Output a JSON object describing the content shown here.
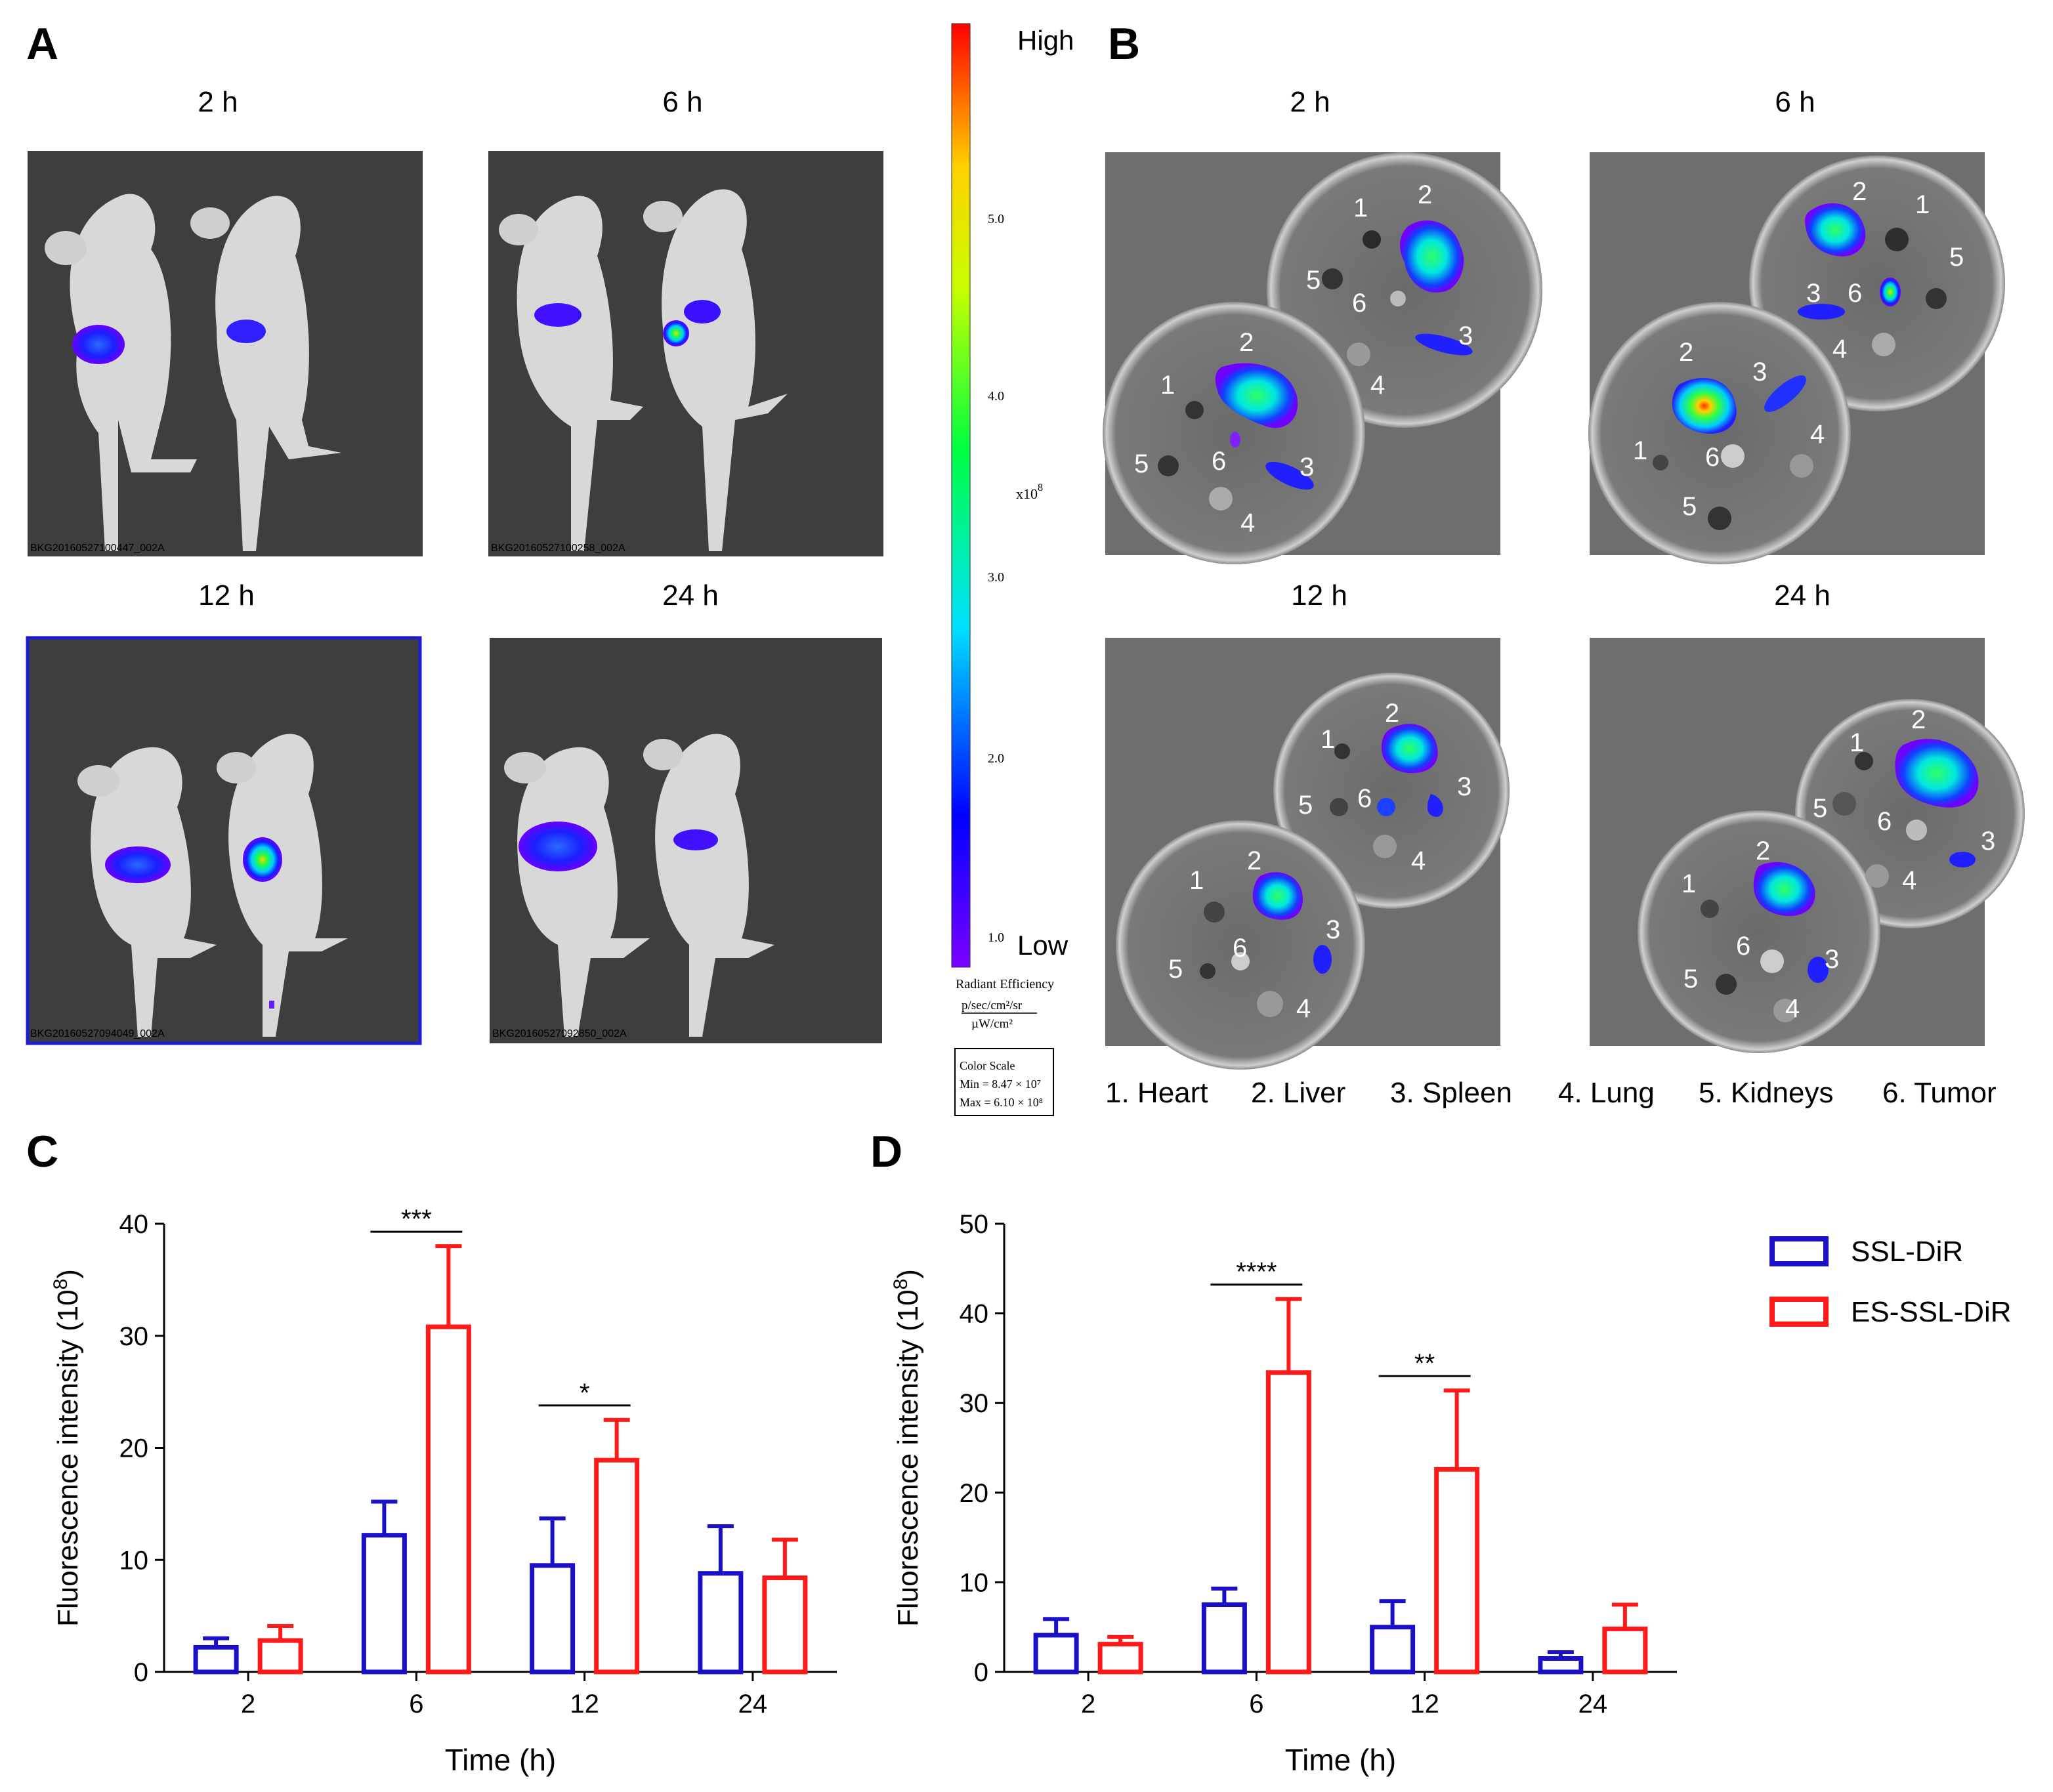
{
  "panel_labels": {
    "A": "A",
    "B": "B",
    "C": "C",
    "D": "D"
  },
  "panel_a": {
    "time_labels": [
      "2 h",
      "6 h",
      "12 h",
      "24 h"
    ],
    "image_ids": [
      "BKG20160527100447_002A",
      "BKG20160527100258_002A",
      "BKG20160527094049_002A",
      "BKG20160527092850_002A"
    ]
  },
  "colorbar": {
    "high": "High",
    "low": "Low",
    "ticks": [
      "5.0",
      "4.0",
      "3.0",
      "2.0",
      "1.0"
    ],
    "exponent_base": "x10",
    "exponent": "8",
    "title": "Radiant Efficiency",
    "unit_numerator": "p/sec/cm²/sr",
    "unit_denominator": "µW/cm²",
    "scale_title": "Color Scale",
    "scale_min": "Min = 8.47 × 10⁷",
    "scale_max": "Max = 6.10 × 10⁸",
    "colors": [
      "#7a00ff",
      "#0000ff",
      "#00e0ff",
      "#00ff40",
      "#c8ff00",
      "#ffd000",
      "#ff0000"
    ]
  },
  "panel_b": {
    "time_labels": [
      "2 h",
      "6 h",
      "12 h",
      "24 h"
    ],
    "organ_numbers": [
      "1",
      "2",
      "3",
      "4",
      "5",
      "6"
    ],
    "legend": [
      "1. Heart",
      "2. Liver",
      "3. Spleen",
      "4. Lung",
      "5. Kidneys",
      "6. Tumor"
    ]
  },
  "legend": {
    "series": [
      {
        "name": "SSL-DiR",
        "color": "#1a10c8"
      },
      {
        "name": "ES-SSL-DiR",
        "color": "#ff1a1a"
      }
    ]
  },
  "chart_data": [
    {
      "id": "C",
      "type": "bar",
      "title": "",
      "xlabel": "Time (h)",
      "ylabel": "Fluorescence intensity (10",
      "ylabel_exp": "8",
      "ylabel_close": ")",
      "categories": [
        "2",
        "6",
        "12",
        "24"
      ],
      "ylim": [
        0,
        40
      ],
      "yticks": [
        0,
        10,
        20,
        30,
        40
      ],
      "series": [
        {
          "name": "SSL-DiR",
          "values": [
            2.2,
            12.2,
            9.5,
            8.8
          ],
          "errors": [
            0.8,
            3.0,
            4.2,
            4.2
          ]
        },
        {
          "name": "ES-SSL-DiR",
          "values": [
            2.8,
            30.8,
            18.9,
            8.4
          ],
          "errors": [
            1.3,
            7.2,
            3.6,
            3.4
          ]
        }
      ],
      "significance": [
        {
          "category": "6",
          "text": "***"
        },
        {
          "category": "12",
          "text": "*"
        }
      ]
    },
    {
      "id": "D",
      "type": "bar",
      "title": "",
      "xlabel": "Time (h)",
      "ylabel": "Fluorescence intensity (10",
      "ylabel_exp": "8",
      "ylabel_close": ")",
      "categories": [
        "2",
        "6",
        "12",
        "24"
      ],
      "ylim": [
        0,
        50
      ],
      "yticks": [
        0,
        10,
        20,
        30,
        40,
        50
      ],
      "series": [
        {
          "name": "SSL-DiR",
          "values": [
            4.1,
            7.5,
            5.0,
            1.5
          ],
          "errors": [
            1.8,
            1.8,
            2.9,
            0.7
          ]
        },
        {
          "name": "ES-SSL-DiR",
          "values": [
            3.1,
            33.4,
            22.6,
            4.8
          ],
          "errors": [
            0.8,
            8.2,
            8.8,
            2.7
          ]
        }
      ],
      "significance": [
        {
          "category": "6",
          "text": "****"
        },
        {
          "category": "12",
          "text": "**"
        }
      ]
    }
  ]
}
